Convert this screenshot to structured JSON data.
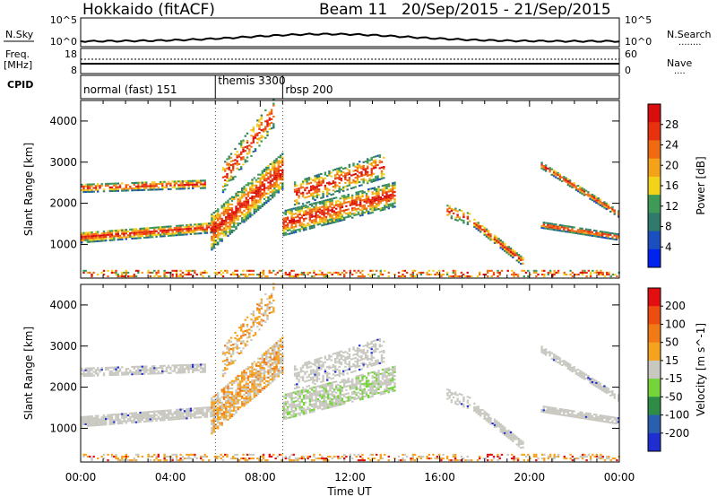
{
  "header": {
    "station": "Hokkaido (fitACF)",
    "beam": "Beam 11",
    "date_range": "20/Sep/2015 - 21/Sep/2015"
  },
  "strip": {
    "nsky_label": "N.Sky",
    "nsearch_label": "N.Search",
    "nsearch_dots": "........",
    "nsky_ticks": [
      "10^5",
      "10^0"
    ],
    "nsearch_ticks": [
      "10^5",
      "10^0"
    ],
    "freq_label_1": "Freq.",
    "freq_label_2": "[MHz]",
    "freq_ticks": [
      "18",
      "8"
    ],
    "nave_label": "Nave",
    "nave_dots": "....",
    "nave_ticks": [
      "60",
      "0"
    ],
    "cpid_label": "CPID",
    "cpid_modes": [
      {
        "name": "normal (fast) 151",
        "start_hour": 0
      },
      {
        "name": "themis 3300",
        "start_hour": 6
      },
      {
        "name": "rbsp 200",
        "start_hour": 9
      }
    ]
  },
  "colors": {
    "power_scale": [
      "#0022ee",
      "#1b4fbf",
      "#2f7a6b",
      "#3f9a57",
      "#f2d21a",
      "#f4a21a",
      "#f06a12",
      "#e8320f",
      "#d80d0d"
    ],
    "velocity_scale": [
      "#1e2ed0",
      "#2a5fb0",
      "#2e8c47",
      "#75d43a",
      "#c8c8c0",
      "#f5a21e",
      "#f27a16",
      "#ee4d11",
      "#e10f0f"
    ]
  },
  "chart_data": [
    {
      "type": "heatmap",
      "name": "power",
      "ylabel": "Slant Range [km]",
      "xlabel": "Time UT",
      "x_ticks": [
        "00:00",
        "04:00",
        "08:00",
        "12:00",
        "16:00",
        "20:00",
        "00:00"
      ],
      "xlim_hours": [
        0,
        24
      ],
      "y_ticks": [
        "1000",
        "2000",
        "3000",
        "4000"
      ],
      "ylim": [
        180,
        4500
      ],
      "colorbar_label": "Power [dB]",
      "colorbar_ticks": [
        "4",
        "8",
        "12",
        "16",
        "20",
        "24",
        "28"
      ],
      "colorbar_range": [
        0,
        32
      ]
    },
    {
      "type": "heatmap",
      "name": "velocity",
      "ylabel": "Slant Range [km]",
      "xlabel": "Time UT",
      "x_ticks": [
        "00:00",
        "04:00",
        "08:00",
        "12:00",
        "16:00",
        "20:00",
        "00:00"
      ],
      "xlim_hours": [
        0,
        24
      ],
      "y_ticks": [
        "1000",
        "2000",
        "3000",
        "4000"
      ],
      "ylim": [
        180,
        4500
      ],
      "colorbar_label": "Velocity [m s^-1]",
      "colorbar_ticks": [
        "200",
        "100",
        "50",
        "15",
        "-15",
        "-50",
        "-100",
        "-200"
      ]
    }
  ]
}
